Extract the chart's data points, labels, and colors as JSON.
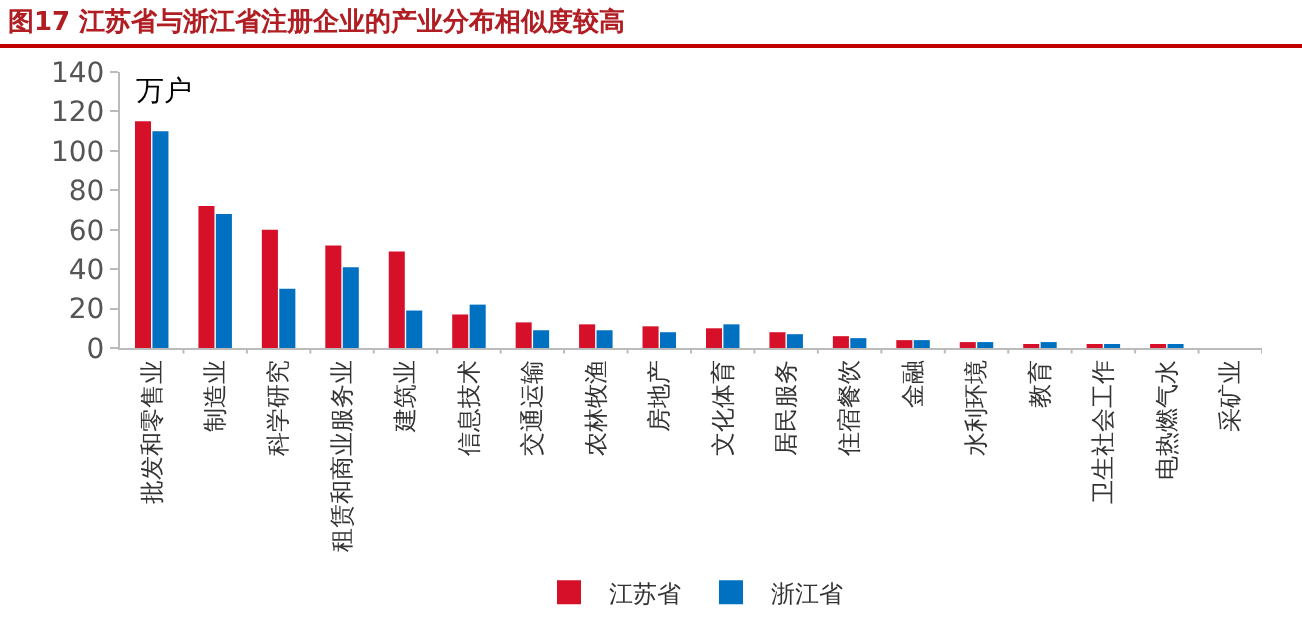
{
  "chart_data": {
    "type": "bar",
    "title": "图17  江苏省与浙江省注册企业的产业分布相似度较高",
    "ylabel": "万户",
    "categories": [
      "批发和零售业",
      "制造业",
      "科学研究",
      "租赁和商业服务业",
      "建筑业",
      "信息技术",
      "交通运输",
      "农林牧渔",
      "房地产",
      "文化体育",
      "居民服务",
      "住宿餐饮",
      "金融",
      "水利环境",
      "教育",
      "卫生社会工作",
      "电热燃气水",
      "采矿业"
    ],
    "series": [
      {
        "name": "江苏省",
        "color": "#d7102a",
        "values": [
          115,
          72,
          60,
          52,
          49,
          17,
          13,
          12,
          11,
          10,
          8,
          6,
          4,
          3,
          2,
          2,
          2,
          0
        ]
      },
      {
        "name": "浙江省",
        "color": "#0070c0",
        "values": [
          110,
          68,
          30,
          41,
          19,
          22,
          9,
          9,
          8,
          12,
          7,
          5,
          4,
          3,
          3,
          2,
          2,
          0
        ]
      }
    ],
    "ylim": [
      0,
      140
    ],
    "yticks": [
      0,
      20,
      40,
      60,
      80,
      100,
      120,
      140
    ],
    "grid": false,
    "legend": "bottom"
  }
}
